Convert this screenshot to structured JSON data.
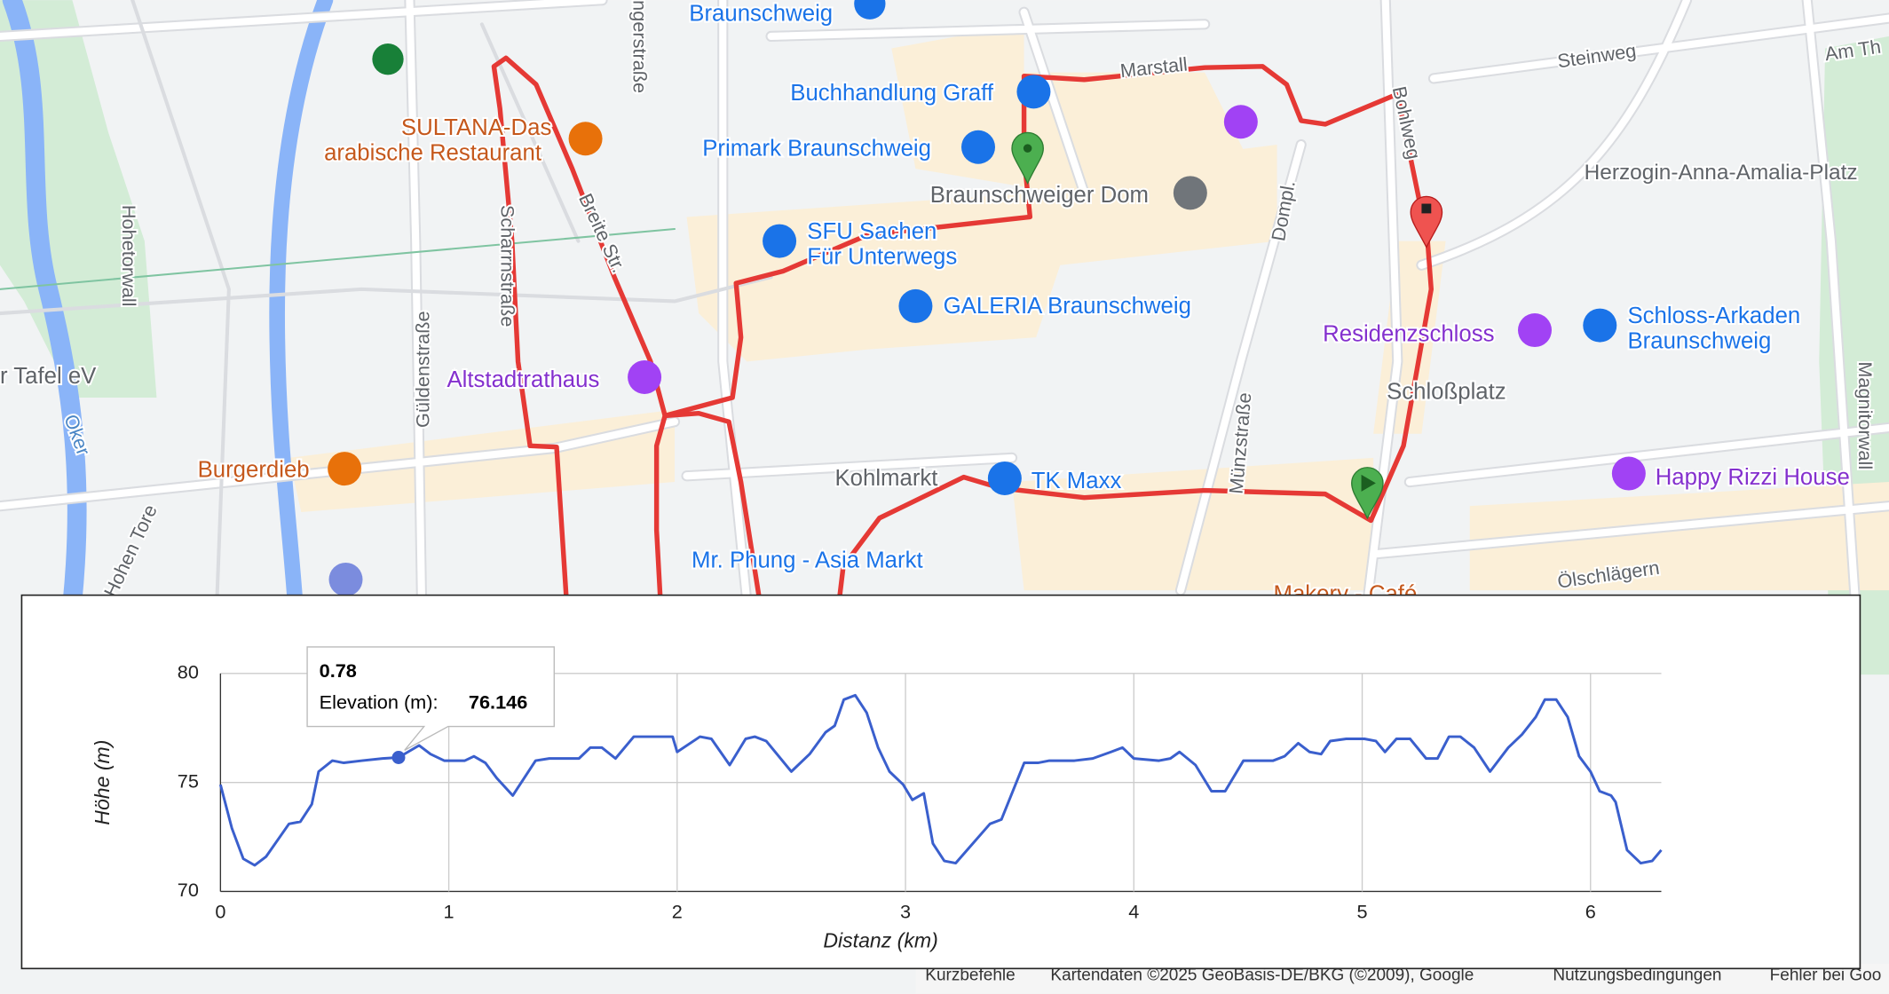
{
  "map": {
    "labels": [
      "Braunschweig",
      "Buchhandlung Graff",
      "Primark Braunschweig",
      "Braunschweiger Dom",
      "SFU Sachen",
      "Für Unterwegs",
      "GALERIA Braunschweig",
      "SULTANA-Das",
      "arabische Restaurant",
      "Altstadtrathaus",
      "Burgerdieb",
      "Kohlmarkt",
      "TK Maxx",
      "Mr. Phung - Asia Markt",
      "Residenzschloss",
      "Schloss-Arkaden",
      "Braunschweig",
      "Schloßplatz",
      "Happy Rizzi House",
      "Herzogin-Anna-Amalia-Platz",
      "Steinweg",
      "Am Th",
      "Marstall",
      "Bohlweg",
      "Dompl.",
      "Münzstraße",
      "Güldenstraße",
      "Hohetorwall",
      "Oker",
      "Hohen Tore",
      "Magnitorwall",
      "Ölschlägern",
      "Makery - Café",
      "r Tafel eV",
      "Scharrnstraße",
      "Breite Str.",
      "ngerstraße"
    ],
    "footer": [
      "Kurzbefehle",
      "Kartendaten ©2025 GeoBasis-DE/BKG (©2009), Google",
      "Nutzungsbedingungen",
      "Fehler bei Goo"
    ]
  },
  "chart_data": {
    "type": "line",
    "x_label": "Distanz (km)",
    "y_label": "Höhe (m)",
    "color": "#3a5fcd",
    "x": [
      0,
      0.05,
      0.1,
      0.15,
      0.2,
      0.3,
      0.35,
      0.4,
      0.43,
      0.49,
      0.54,
      0.62,
      0.71,
      0.78,
      0.87,
      0.92,
      0.98,
      1.07,
      1.11,
      1.16,
      1.21,
      1.28,
      1.38,
      1.44,
      1.57,
      1.62,
      1.67,
      1.73,
      1.81,
      1.89,
      1.98,
      2.0,
      2.1,
      2.15,
      2.23,
      2.3,
      2.34,
      2.39,
      2.5,
      2.58,
      2.65,
      2.69,
      2.73,
      2.78,
      2.83,
      2.88,
      2.93,
      2.99,
      3.03,
      3.08,
      3.12,
      3.17,
      3.22,
      3.27,
      3.37,
      3.42,
      3.52,
      3.58,
      3.63,
      3.74,
      3.82,
      3.9,
      3.95,
      4.0,
      4.11,
      4.16,
      4.2,
      4.27,
      4.34,
      4.4,
      4.48,
      4.56,
      4.61,
      4.66,
      4.72,
      4.77,
      4.82,
      4.86,
      4.93,
      5.01,
      5.06,
      5.1,
      5.15,
      5.21,
      5.28,
      5.33,
      5.38,
      5.43,
      5.49,
      5.56,
      5.64,
      5.7,
      5.76,
      5.8,
      5.85,
      5.9,
      5.95,
      6.0,
      6.04,
      6.09,
      6.11,
      6.16,
      6.22,
      6.27,
      6.31
    ],
    "values": [
      74.9,
      72.9,
      71.5,
      71.2,
      71.6,
      73.1,
      73.2,
      74.0,
      75.5,
      76.0,
      75.9,
      76.0,
      76.1,
      76.146,
      76.7,
      76.3,
      76.0,
      76.0,
      76.2,
      75.9,
      75.2,
      74.4,
      76.0,
      76.1,
      76.1,
      76.6,
      76.6,
      76.1,
      77.1,
      77.1,
      77.1,
      76.4,
      77.1,
      77.0,
      75.8,
      77.0,
      77.1,
      76.9,
      75.5,
      76.3,
      77.3,
      77.6,
      78.8,
      79.0,
      78.2,
      76.6,
      75.5,
      74.9,
      74.2,
      74.5,
      72.2,
      71.4,
      71.3,
      71.9,
      73.1,
      73.3,
      75.9,
      75.9,
      76.0,
      76.0,
      76.1,
      76.4,
      76.6,
      76.1,
      76.0,
      76.1,
      76.4,
      75.8,
      74.6,
      74.6,
      76.0,
      76.0,
      76.0,
      76.2,
      76.8,
      76.4,
      76.3,
      76.9,
      77.0,
      77.0,
      76.9,
      76.4,
      77.0,
      77.0,
      76.1,
      76.1,
      77.1,
      77.1,
      76.6,
      75.5,
      76.6,
      77.2,
      78.0,
      78.8,
      78.8,
      78.0,
      76.2,
      75.5,
      74.6,
      74.4,
      74.1,
      71.9,
      71.3,
      71.4,
      71.9
    ],
    "xlim": [
      0,
      6.31
    ],
    "ylim": [
      70,
      80
    ],
    "xticks": [
      0,
      1,
      2,
      3,
      4,
      5,
      6
    ],
    "yticks": [
      70,
      75,
      80
    ],
    "grid": true,
    "tooltip": {
      "x": 0.78,
      "label": "Elevation (m):",
      "value": 76.146
    }
  }
}
